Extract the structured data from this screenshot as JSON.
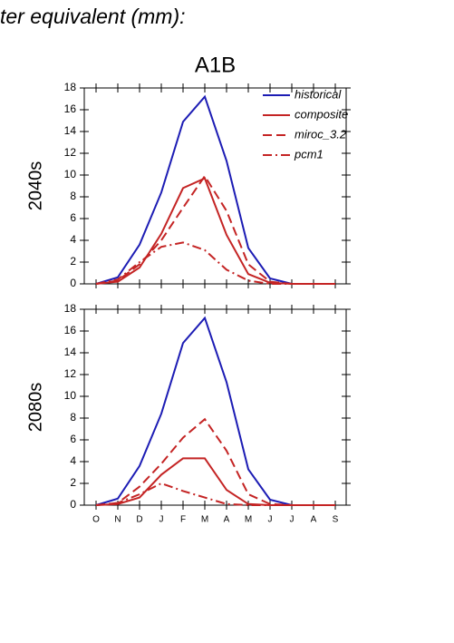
{
  "header": "ter equivalent (mm):",
  "chart_data": [
    {
      "type": "line",
      "title": "A1B",
      "y_label": "2040s",
      "categories": [
        "O",
        "N",
        "D",
        "J",
        "F",
        "M",
        "A",
        "M",
        "J",
        "J",
        "A",
        "S"
      ],
      "x_tick_labels": false,
      "ylim": [
        0,
        18
      ],
      "yticks": [
        0,
        2,
        4,
        6,
        8,
        10,
        12,
        14,
        16,
        18
      ],
      "legend": "top-right",
      "series": [
        {
          "name": "historical",
          "color": "#1c1cb4",
          "dash": "solid",
          "values": [
            0,
            0.6,
            3.6,
            8.4,
            14.9,
            17.2,
            11.3,
            3.3,
            0.5,
            0,
            0,
            0
          ]
        },
        {
          "name": "composite",
          "color": "#c42424",
          "dash": "solid",
          "values": [
            0,
            0.2,
            1.5,
            4.6,
            8.8,
            9.7,
            4.5,
            0.9,
            0.1,
            0,
            0,
            0
          ]
        },
        {
          "name": "miroc_3.2",
          "color": "#c42424",
          "dash": "dashed",
          "values": [
            0,
            0.3,
            1.8,
            4.0,
            7.0,
            9.9,
            6.7,
            1.8,
            0.2,
            0,
            0,
            0
          ]
        },
        {
          "name": "pcm1",
          "color": "#c42424",
          "dash": "dashdot",
          "values": [
            0,
            0.4,
            2.0,
            3.4,
            3.8,
            3.1,
            1.3,
            0.3,
            0,
            0,
            0,
            0
          ]
        }
      ]
    },
    {
      "type": "line",
      "y_label": "2080s",
      "categories": [
        "O",
        "N",
        "D",
        "J",
        "F",
        "M",
        "A",
        "M",
        "J",
        "J",
        "A",
        "S"
      ],
      "x_tick_labels": true,
      "ylim": [
        0,
        18
      ],
      "yticks": [
        0,
        2,
        4,
        6,
        8,
        10,
        12,
        14,
        16,
        18
      ],
      "series": [
        {
          "name": "historical",
          "color": "#1c1cb4",
          "dash": "solid",
          "values": [
            0,
            0.6,
            3.6,
            8.4,
            14.9,
            17.2,
            11.3,
            3.3,
            0.5,
            0,
            0,
            0
          ]
        },
        {
          "name": "composite",
          "color": "#c42424",
          "dash": "solid",
          "values": [
            0,
            0.1,
            0.7,
            2.8,
            4.3,
            4.3,
            1.4,
            0.1,
            0,
            0,
            0,
            0
          ]
        },
        {
          "name": "miroc_3.2",
          "color": "#c42424",
          "dash": "dashed",
          "values": [
            0,
            0.2,
            1.7,
            3.8,
            6.2,
            7.9,
            5.0,
            1.0,
            0.1,
            0,
            0,
            0
          ]
        },
        {
          "name": "pcm1",
          "color": "#c42424",
          "dash": "dashdot",
          "values": [
            0,
            0.2,
            1.0,
            2.0,
            1.3,
            0.7,
            0.1,
            0,
            0,
            0,
            0,
            0
          ]
        }
      ]
    }
  ]
}
